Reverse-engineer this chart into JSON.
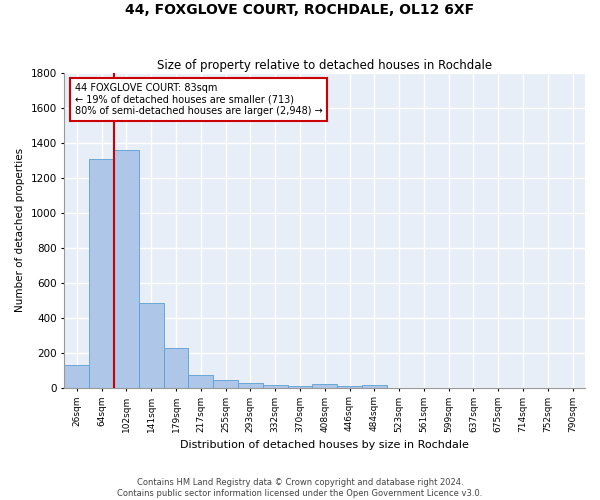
{
  "title": "44, FOXGLOVE COURT, ROCHDALE, OL12 6XF",
  "subtitle": "Size of property relative to detached houses in Rochdale",
  "xlabel": "Distribution of detached houses by size in Rochdale",
  "ylabel": "Number of detached properties",
  "footer1": "Contains HM Land Registry data © Crown copyright and database right 2024.",
  "footer2": "Contains public sector information licensed under the Open Government Licence v3.0.",
  "categories": [
    "26sqm",
    "64sqm",
    "102sqm",
    "141sqm",
    "179sqm",
    "217sqm",
    "255sqm",
    "293sqm",
    "332sqm",
    "370sqm",
    "408sqm",
    "446sqm",
    "484sqm",
    "523sqm",
    "561sqm",
    "599sqm",
    "637sqm",
    "675sqm",
    "714sqm",
    "752sqm",
    "790sqm"
  ],
  "values": [
    130,
    1310,
    1360,
    485,
    225,
    75,
    45,
    25,
    15,
    10,
    20,
    10,
    15,
    0,
    0,
    0,
    0,
    0,
    0,
    0,
    0
  ],
  "bar_color": "#aec6e8",
  "bar_edge_color": "#5a9fd4",
  "bg_color": "#e8eef7",
  "grid_color": "#ffffff",
  "annotation_line1": "44 FOXGLOVE COURT: 83sqm",
  "annotation_line2": "← 19% of detached houses are smaller (713)",
  "annotation_line3": "80% of semi-detached houses are larger (2,948) →",
  "annotation_box_color": "#cc0000",
  "red_line_index": 1.5,
  "ylim": [
    0,
    1800
  ],
  "yticks": [
    0,
    200,
    400,
    600,
    800,
    1000,
    1200,
    1400,
    1600,
    1800
  ]
}
